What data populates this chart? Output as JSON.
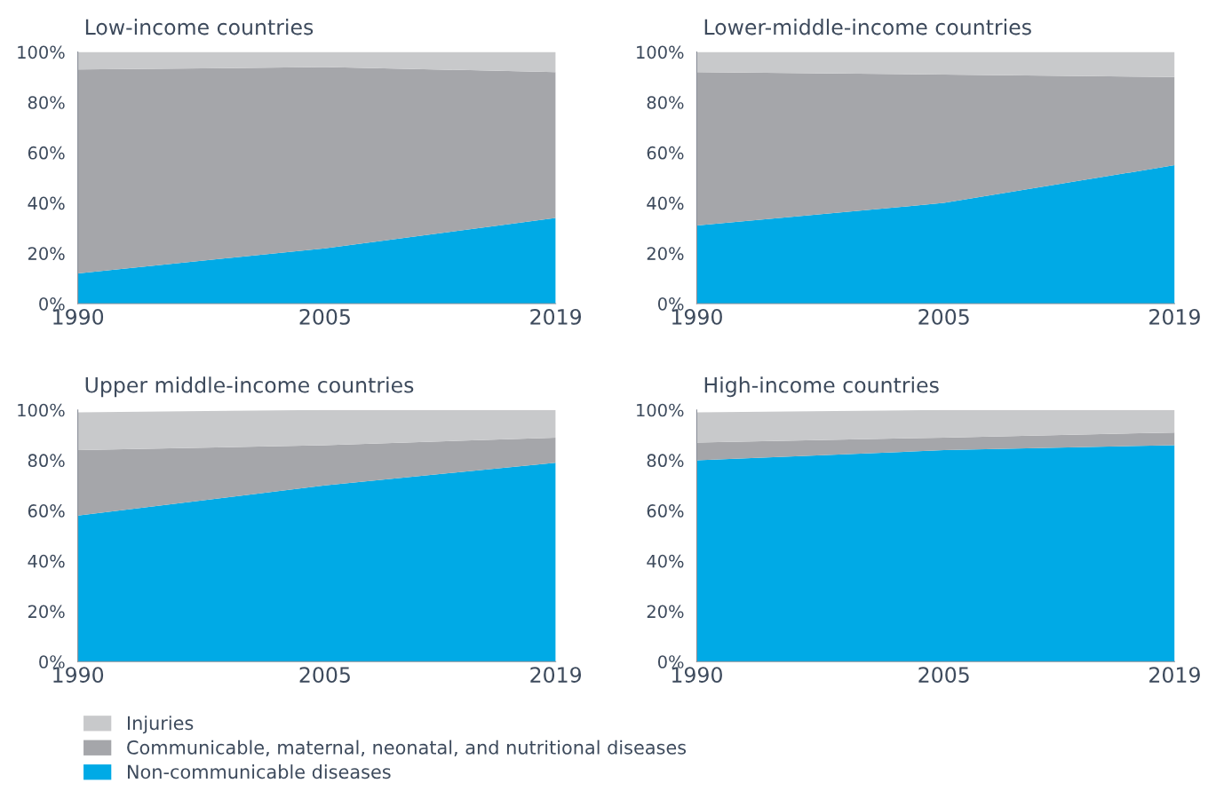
{
  "chart_data": [
    {
      "type": "area",
      "stacked": true,
      "title": "Low-income countries",
      "x": [
        1990,
        2005,
        2019
      ],
      "xlim": [
        1990,
        2019
      ],
      "xticks": [
        1990,
        2005,
        2019
      ],
      "ylim": [
        0,
        100
      ],
      "yticks": [
        {
          "value": 0,
          "label": "0%"
        },
        {
          "value": 20,
          "label": "20%"
        },
        {
          "value": 40,
          "label": "40%"
        },
        {
          "value": 60,
          "label": "60%"
        },
        {
          "value": 80,
          "label": "80%"
        },
        {
          "value": 100,
          "label": "100%"
        }
      ],
      "legend": "bottom",
      "series": [
        {
          "name": "Non-communicable diseases",
          "color": "#00aae6",
          "values": [
            12,
            22,
            34
          ]
        },
        {
          "name": "Communicable, maternal, neonatal, and nutritional diseases",
          "color": "#a5a6aa",
          "values": [
            81,
            72,
            58
          ]
        },
        {
          "name": "Injuries",
          "color": "#c8c9cb",
          "values": [
            7,
            6,
            8
          ]
        }
      ]
    },
    {
      "type": "area",
      "stacked": true,
      "title": "Lower-middle-income countries",
      "x": [
        1990,
        2005,
        2019
      ],
      "xlim": [
        1990,
        2019
      ],
      "xticks": [
        1990,
        2005,
        2019
      ],
      "ylim": [
        0,
        100
      ],
      "yticks": [
        {
          "value": 0,
          "label": "0%"
        },
        {
          "value": 20,
          "label": "20%"
        },
        {
          "value": 40,
          "label": "40%"
        },
        {
          "value": 60,
          "label": "60%"
        },
        {
          "value": 80,
          "label": "80%"
        },
        {
          "value": 100,
          "label": "100%"
        }
      ],
      "series": [
        {
          "color": "#00aae6",
          "values": [
            31,
            40,
            55
          ]
        },
        {
          "color": "#a5a6aa",
          "values": [
            61,
            51,
            35
          ]
        },
        {
          "color": "#c8c9cb",
          "values": [
            8,
            9,
            10
          ]
        }
      ]
    },
    {
      "type": "area",
      "stacked": true,
      "title": "Upper middle-income countries",
      "x": [
        1990,
        2005,
        2019
      ],
      "xlim": [
        1990,
        2019
      ],
      "xticks": [
        1990,
        2005,
        2019
      ],
      "ylim": [
        0,
        100
      ],
      "yticks": [
        {
          "value": 0,
          "label": "0%"
        },
        {
          "value": 20,
          "label": "20%"
        },
        {
          "value": 40,
          "label": "40%"
        },
        {
          "value": 60,
          "label": "60%"
        },
        {
          "value": 80,
          "label": "80%"
        },
        {
          "value": 100,
          "label": "100%"
        }
      ],
      "series": [
        {
          "color": "#00aae6",
          "values": [
            58,
            70,
            79
          ]
        },
        {
          "color": "#a5a6aa",
          "values": [
            26,
            16,
            10
          ]
        },
        {
          "color": "#c8c9cb",
          "values": [
            15,
            14,
            11
          ]
        }
      ]
    },
    {
      "type": "area",
      "stacked": true,
      "title": "High-income countries",
      "x": [
        1990,
        2005,
        2019
      ],
      "xlim": [
        1990,
        2019
      ],
      "xticks": [
        1990,
        2005,
        2019
      ],
      "ylim": [
        0,
        100
      ],
      "yticks": [
        {
          "value": 0,
          "label": "0%"
        },
        {
          "value": 20,
          "label": "20%"
        },
        {
          "value": 40,
          "label": "40%"
        },
        {
          "value": 60,
          "label": "60%"
        },
        {
          "value": 80,
          "label": "80%"
        },
        {
          "value": 100,
          "label": "100%"
        }
      ],
      "series": [
        {
          "color": "#00aae6",
          "values": [
            80,
            84,
            86
          ]
        },
        {
          "color": "#a5a6aa",
          "values": [
            7,
            5,
            5
          ]
        },
        {
          "color": "#c8c9cb",
          "values": [
            12,
            11,
            9
          ]
        }
      ]
    }
  ]
}
